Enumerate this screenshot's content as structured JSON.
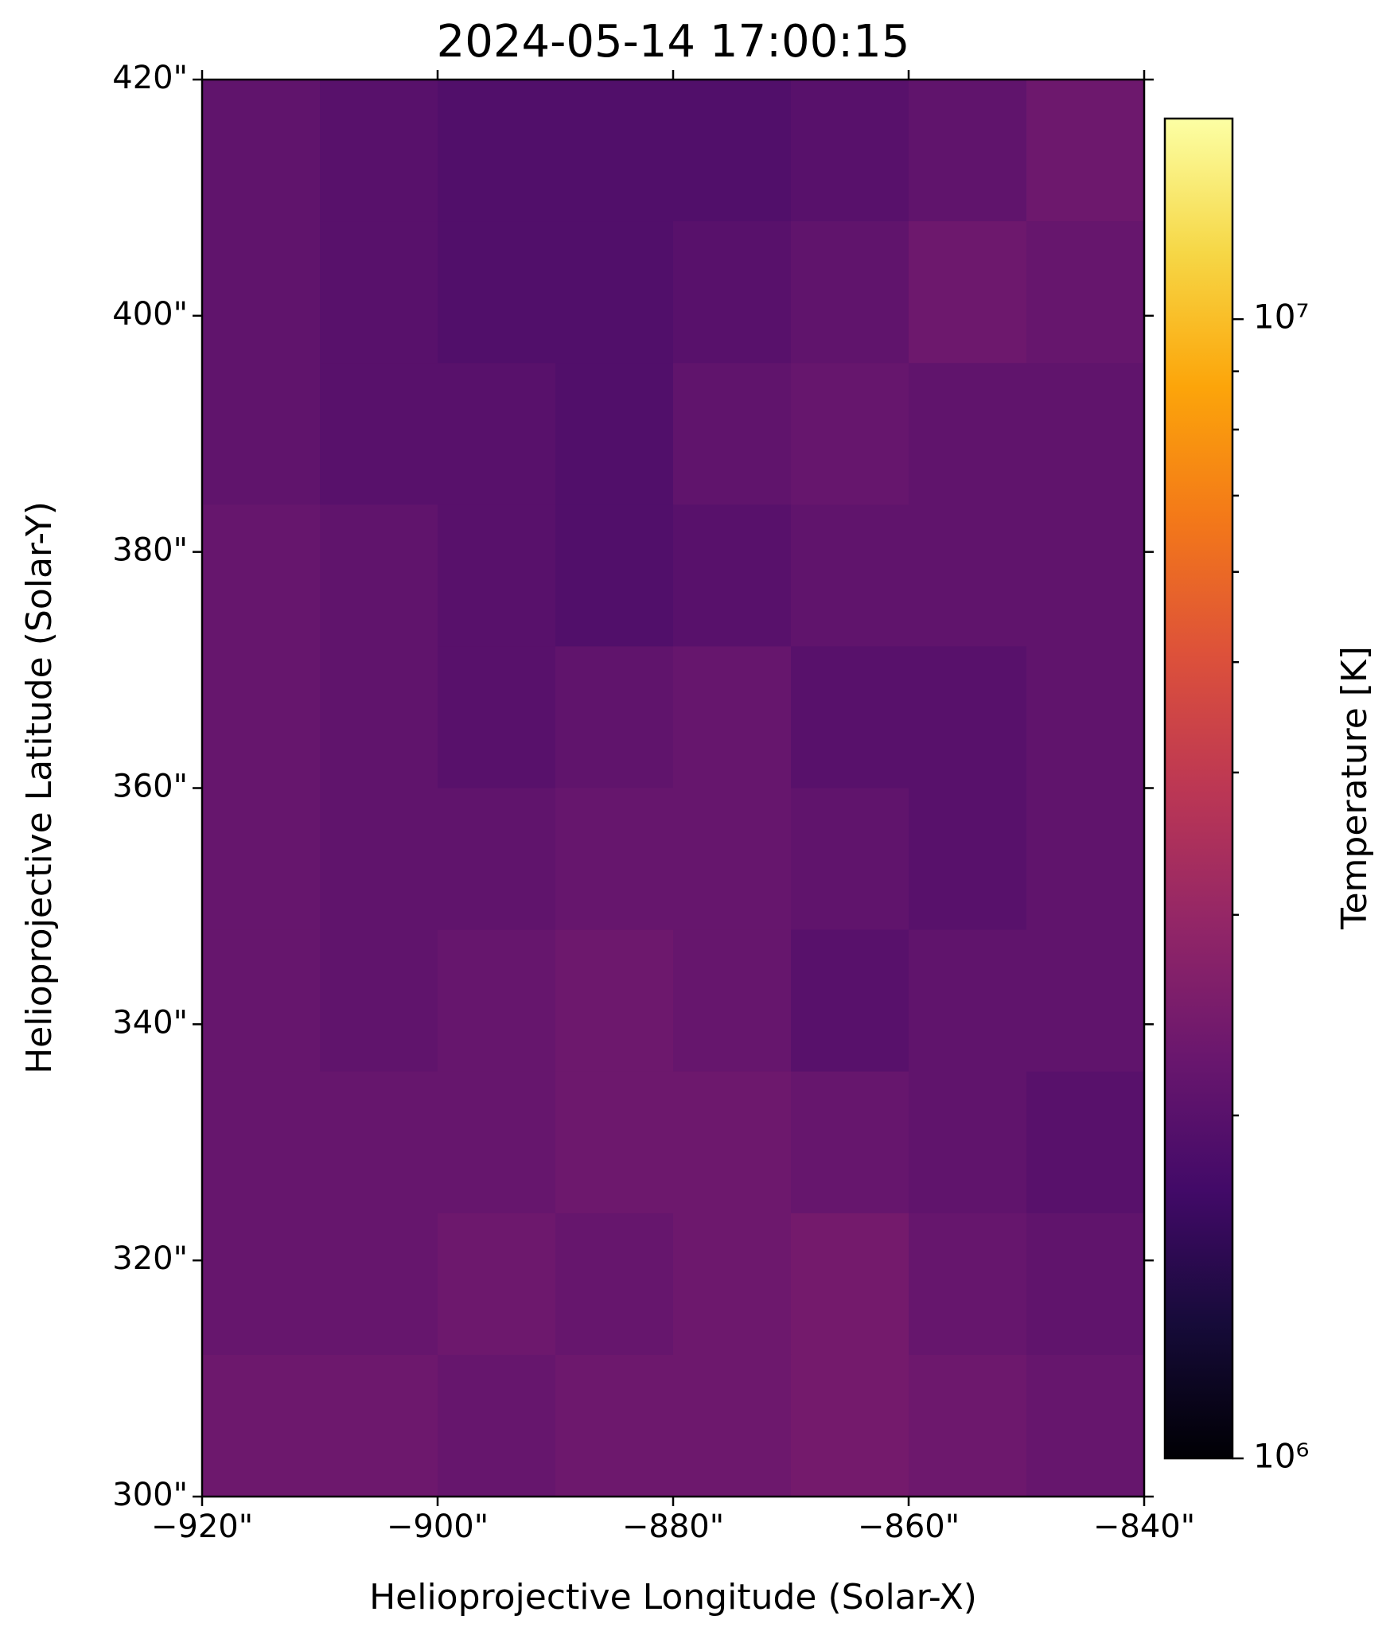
{
  "chart_data": {
    "type": "heatmap",
    "title": "2024-05-14 17:00:15",
    "xlabel": "Helioprojective Longitude (Solar-X)",
    "ylabel": "Helioprojective Latitude (Solar-Y)",
    "colorbar_label": "Temperature [K]",
    "colormap": "inferno",
    "clog": true,
    "xlim": [
      -920,
      -840
    ],
    "ylim": [
      420,
      300
    ],
    "xticks": [
      {
        "value": -920,
        "label": "−920\""
      },
      {
        "value": -900,
        "label": "−900\""
      },
      {
        "value": -880,
        "label": "−880\""
      },
      {
        "value": -860,
        "label": "−860\""
      },
      {
        "value": -840,
        "label": "−840\""
      }
    ],
    "yticks": [
      {
        "value": 300,
        "label": "300\""
      },
      {
        "value": 320,
        "label": "320\""
      },
      {
        "value": 340,
        "label": "340\""
      },
      {
        "value": 360,
        "label": "360\""
      },
      {
        "value": 380,
        "label": "380\""
      },
      {
        "value": 400,
        "label": "400\""
      },
      {
        "value": 420,
        "label": "420\""
      }
    ],
    "clim": [
      1000000,
      15000000
    ],
    "cticks": [
      {
        "value": 1000000,
        "label": "10⁶"
      },
      {
        "value": 10000000,
        "label": "10⁷"
      }
    ],
    "cticks_minor": [
      2000000,
      3000000,
      4000000,
      5000000,
      6000000,
      7000000,
      8000000,
      9000000
    ],
    "z": [
      [
        2100000,
        2000000,
        1900000,
        1900000,
        1900000,
        2000000,
        2100000,
        2300000
      ],
      [
        2100000,
        2000000,
        1900000,
        1900000,
        2000000,
        2100000,
        2300000,
        2200000
      ],
      [
        2100000,
        2000000,
        2000000,
        1900000,
        2100000,
        2200000,
        2100000,
        2100000
      ],
      [
        2200000,
        2100000,
        2000000,
        1900000,
        2000000,
        2100000,
        2100000,
        2100000
      ],
      [
        2200000,
        2100000,
        2000000,
        2100000,
        2200000,
        2000000,
        2000000,
        2100000
      ],
      [
        2200000,
        2100000,
        2100000,
        2200000,
        2200000,
        2100000,
        2000000,
        2100000
      ],
      [
        2200000,
        2100000,
        2200000,
        2300000,
        2200000,
        2000000,
        2100000,
        2100000
      ],
      [
        2200000,
        2200000,
        2200000,
        2300000,
        2300000,
        2200000,
        2100000,
        2000000
      ],
      [
        2200000,
        2200000,
        2300000,
        2200000,
        2300000,
        2400000,
        2200000,
        2100000
      ],
      [
        2300000,
        2300000,
        2200000,
        2300000,
        2300000,
        2400000,
        2300000,
        2200000
      ]
    ]
  }
}
